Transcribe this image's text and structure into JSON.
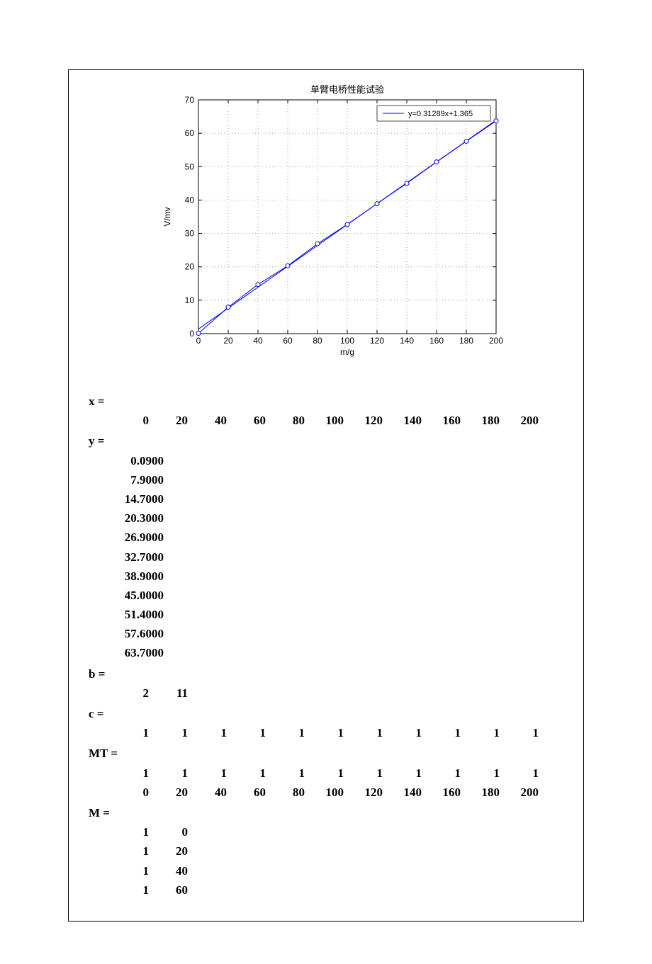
{
  "chart": {
    "type": "line",
    "title": "单臂电桥性能试验",
    "title_fontsize": 13,
    "xlabel": "m/g",
    "ylabel": "V/mv",
    "label_fontsize": 12,
    "tick_fontsize": 12,
    "legend_text": "y=0.31289x+1.365",
    "legend_fontsize": 11,
    "xlim": [
      0,
      200
    ],
    "ylim": [
      0,
      70
    ],
    "xtick_step": 20,
    "ytick_step": 10,
    "background_color": "#ffffff",
    "axis_color": "#000000",
    "grid_color": "#808080",
    "grid_dash": "1 3",
    "line_color": "#0000ff",
    "line_width": 1,
    "marker_color": "#0000ff",
    "marker_radius": 3,
    "x_values": [
      0,
      20,
      40,
      60,
      80,
      100,
      120,
      140,
      160,
      180,
      200
    ],
    "y_points": [
      0.09,
      7.9,
      14.7,
      20.3,
      26.9,
      32.7,
      38.9,
      45.0,
      51.4,
      57.6,
      63.7
    ],
    "fit_slope": 0.31289,
    "fit_intercept": 1.365
  },
  "printout": {
    "x": {
      "label": "x =",
      "values": [
        "0",
        "20",
        "40",
        "60",
        "80",
        "100",
        "120",
        "140",
        "160",
        "180",
        "200"
      ]
    },
    "y": {
      "label": "y =",
      "values": [
        "0.0900",
        "7.9000",
        "14.7000",
        "20.3000",
        "26.9000",
        "32.7000",
        "38.9000",
        "45.0000",
        "51.4000",
        "57.6000",
        "63.7000"
      ]
    },
    "b": {
      "label": "b =",
      "values": [
        "2",
        "11"
      ]
    },
    "c": {
      "label": "c =",
      "values": [
        "1",
        "1",
        "1",
        "1",
        "1",
        "1",
        "1",
        "1",
        "1",
        "1",
        "1"
      ]
    },
    "MT": {
      "label": "MT =",
      "rows": [
        [
          "1",
          "1",
          "1",
          "1",
          "1",
          "1",
          "1",
          "1",
          "1",
          "1",
          "1"
        ],
        [
          "0",
          "20",
          "40",
          "60",
          "80",
          "100",
          "120",
          "140",
          "160",
          "180",
          "200"
        ]
      ]
    },
    "M": {
      "label": "M =",
      "rows": [
        [
          "1",
          "0"
        ],
        [
          "1",
          "20"
        ],
        [
          "1",
          "40"
        ],
        [
          "1",
          "60"
        ]
      ]
    }
  }
}
